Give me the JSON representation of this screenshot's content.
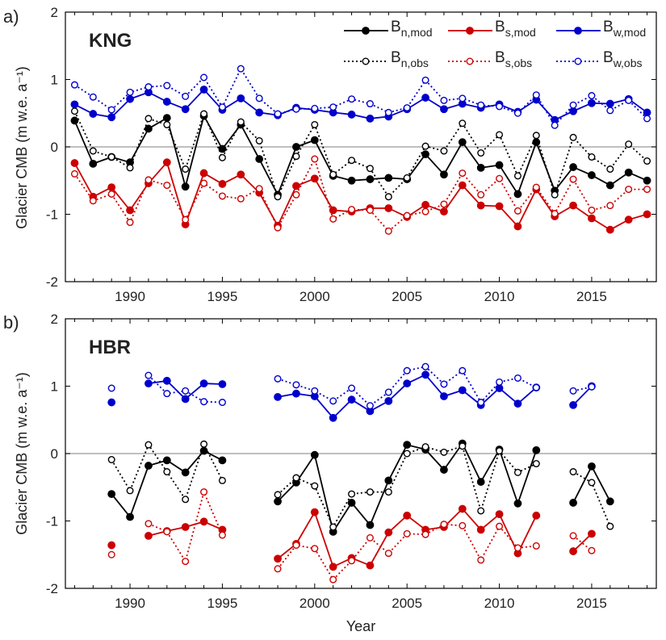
{
  "chart_data": [
    {
      "type": "line",
      "panel_label": "a)",
      "title": "KNG",
      "ylabel": "Glacier CMB (m w.e. a⁻¹)",
      "xlabel": "",
      "ylim": [
        -2,
        2
      ],
      "xlim": [
        1986.5,
        2018.5
      ],
      "yticks": [
        "-2",
        "-1",
        "0",
        "1",
        "2"
      ],
      "xticks": [
        "1990",
        "1995",
        "2000",
        "2005",
        "2010",
        "2015"
      ],
      "legend_placement": "top-right",
      "grid": false,
      "x": [
        1987,
        1988,
        1989,
        1990,
        1991,
        1992,
        1993,
        1994,
        1995,
        1996,
        1997,
        1998,
        1999,
        2000,
        2001,
        2002,
        2003,
        2004,
        2005,
        2006,
        2007,
        2008,
        2009,
        2010,
        2011,
        2012,
        2013,
        2014,
        2015,
        2016,
        2017,
        2018
      ],
      "series": [
        {
          "name": "B",
          "sub": "n,mod",
          "color": "#000000",
          "style": "solid",
          "values": [
            0.39,
            -0.25,
            -0.15,
            -0.23,
            0.27,
            0.43,
            -0.59,
            0.46,
            -0.03,
            0.33,
            -0.18,
            -0.71,
            0.0,
            0.1,
            -0.43,
            -0.5,
            -0.48,
            -0.46,
            -0.48,
            -0.11,
            -0.41,
            0.07,
            -0.31,
            -0.27,
            -0.7,
            0.07,
            -0.65,
            -0.3,
            -0.42,
            -0.57,
            -0.38,
            -0.5
          ]
        },
        {
          "name": "B",
          "sub": "s,mod",
          "color": "#cc0000",
          "style": "solid",
          "values": [
            -0.24,
            -0.74,
            -0.6,
            -0.94,
            -0.54,
            -0.23,
            -1.15,
            -0.39,
            -0.55,
            -0.41,
            -0.68,
            -1.17,
            -0.58,
            -0.47,
            -0.94,
            -0.96,
            -0.91,
            -0.91,
            -1.04,
            -0.86,
            -0.96,
            -0.57,
            -0.87,
            -0.88,
            -1.18,
            -0.63,
            -1.03,
            -0.87,
            -1.06,
            -1.23,
            -1.08,
            -1.0
          ]
        },
        {
          "name": "B",
          "sub": "w,mod",
          "color": "#0000cc",
          "style": "solid",
          "values": [
            0.63,
            0.49,
            0.44,
            0.71,
            0.81,
            0.67,
            0.56,
            0.85,
            0.55,
            0.72,
            0.51,
            0.47,
            0.58,
            0.55,
            0.51,
            0.48,
            0.42,
            0.45,
            0.56,
            0.73,
            0.56,
            0.64,
            0.58,
            0.63,
            0.52,
            0.7,
            0.4,
            0.53,
            0.65,
            0.64,
            0.71,
            0.51
          ]
        },
        {
          "name": "B",
          "sub": "n,obs",
          "color": "#000000",
          "style": "dotted",
          "values": [
            0.53,
            -0.06,
            -0.15,
            -0.31,
            0.42,
            0.33,
            -0.33,
            0.49,
            -0.16,
            0.37,
            0.09,
            -0.74,
            -0.14,
            0.33,
            -0.41,
            -0.2,
            -0.32,
            -0.74,
            -0.46,
            0.01,
            -0.06,
            0.35,
            -0.09,
            0.18,
            -0.43,
            0.17,
            -0.71,
            0.14,
            -0.15,
            -0.33,
            0.04,
            -0.21
          ]
        },
        {
          "name": "B",
          "sub": "s,obs",
          "color": "#cc0000",
          "style": "dotted",
          "values": [
            -0.4,
            -0.8,
            -0.7,
            -1.12,
            -0.49,
            -0.57,
            -1.08,
            -0.54,
            -0.73,
            -0.77,
            -0.62,
            -1.2,
            -0.71,
            -0.18,
            -1.07,
            -0.93,
            -0.94,
            -1.25,
            -1.02,
            -0.96,
            -0.85,
            -0.39,
            -0.71,
            -0.47,
            -0.95,
            -0.6,
            -0.99,
            -0.48,
            -0.94,
            -0.87,
            -0.63,
            -0.63
          ]
        },
        {
          "name": "B",
          "sub": "w,obs",
          "color": "#0000cc",
          "style": "dotted",
          "values": [
            0.92,
            0.74,
            0.55,
            0.81,
            0.89,
            0.91,
            0.75,
            1.03,
            0.59,
            1.16,
            0.72,
            0.49,
            0.56,
            0.57,
            0.59,
            0.71,
            0.64,
            0.51,
            0.58,
            0.99,
            0.69,
            0.72,
            0.62,
            0.6,
            0.5,
            0.77,
            0.32,
            0.62,
            0.76,
            0.54,
            0.69,
            0.42
          ]
        }
      ]
    },
    {
      "type": "line",
      "panel_label": "b)",
      "title": "HBR",
      "ylabel": "Glacier CMB (m w.e. a⁻¹)",
      "xlabel": "Year",
      "ylim": [
        -2,
        2
      ],
      "xlim": [
        1986.5,
        2018.5
      ],
      "yticks": [
        "-2",
        "-1",
        "0",
        "1",
        "2"
      ],
      "xticks": [
        "1990",
        "1995",
        "2000",
        "2005",
        "2010",
        "2015"
      ],
      "grid": false,
      "x": [
        1989,
        1990,
        1991,
        1992,
        1993,
        1994,
        1995,
        1996,
        1997,
        1998,
        1999,
        2000,
        2001,
        2002,
        2003,
        2004,
        2005,
        2006,
        2007,
        2008,
        2009,
        2010,
        2011,
        2012,
        2013,
        2014,
        2015,
        2016
      ],
      "series": [
        {
          "name": "B",
          "sub": "n,mod",
          "color": "#000000",
          "style": "solid",
          "values": [
            -0.6,
            -0.94,
            -0.18,
            -0.1,
            -0.28,
            0.04,
            -0.1,
            null,
            null,
            -0.71,
            -0.43,
            -0.02,
            -1.16,
            -0.73,
            -1.06,
            -0.4,
            0.13,
            0.06,
            -0.24,
            0.15,
            -0.42,
            0.06,
            -0.74,
            0.05,
            null,
            -0.73,
            -0.19,
            -0.71
          ]
        },
        {
          "name": "B",
          "sub": "s,mod",
          "color": "#cc0000",
          "style": "solid",
          "values": [
            -1.36,
            null,
            -1.22,
            -1.15,
            -1.09,
            -1.01,
            -1.13,
            null,
            null,
            -1.56,
            -1.34,
            -0.87,
            -1.68,
            -1.55,
            -1.66,
            -1.17,
            -0.92,
            -1.13,
            -1.09,
            -0.82,
            -1.13,
            -0.9,
            -1.48,
            -0.92,
            null,
            -1.45,
            -1.19,
            null
          ]
        },
        {
          "name": "B",
          "sub": "w,mod",
          "color": "#0000cc",
          "style": "solid",
          "values": [
            0.76,
            null,
            1.04,
            1.08,
            0.81,
            1.04,
            1.03,
            null,
            null,
            0.84,
            0.89,
            0.85,
            0.53,
            0.8,
            0.63,
            0.78,
            1.04,
            1.17,
            0.85,
            0.94,
            0.72,
            0.97,
            0.74,
            0.98,
            null,
            0.72,
            1.0,
            null
          ]
        },
        {
          "name": "B",
          "sub": "n,obs",
          "color": "#000000",
          "style": "dotted",
          "values": [
            -0.09,
            -0.55,
            0.13,
            -0.27,
            -0.68,
            0.14,
            -0.4,
            null,
            null,
            -0.61,
            -0.36,
            -0.48,
            -1.09,
            -0.6,
            -0.57,
            -0.57,
            0.0,
            0.1,
            0.02,
            0.11,
            -0.85,
            0.04,
            -0.28,
            -0.15,
            null,
            -0.27,
            -0.43,
            -1.08
          ]
        },
        {
          "name": "B",
          "sub": "s,obs",
          "color": "#cc0000",
          "style": "dotted",
          "values": [
            -1.5,
            null,
            -1.04,
            -1.16,
            -1.6,
            -0.57,
            -1.21,
            null,
            null,
            -1.71,
            -1.36,
            -1.41,
            -1.87,
            -1.59,
            -1.25,
            -1.48,
            -1.19,
            -1.2,
            -1.05,
            -1.07,
            -1.58,
            -1.08,
            -1.4,
            -1.37,
            null,
            -1.22,
            -1.44,
            null
          ]
        },
        {
          "name": "B",
          "sub": "w,obs",
          "color": "#0000cc",
          "style": "dotted",
          "values": [
            0.97,
            null,
            1.16,
            0.89,
            0.93,
            0.77,
            0.76,
            null,
            null,
            1.11,
            1.02,
            0.93,
            0.78,
            0.97,
            0.71,
            0.91,
            1.23,
            1.29,
            1.03,
            1.23,
            0.76,
            1.06,
            1.12,
            0.98,
            null,
            0.93,
            0.99,
            null
          ]
        }
      ]
    }
  ]
}
